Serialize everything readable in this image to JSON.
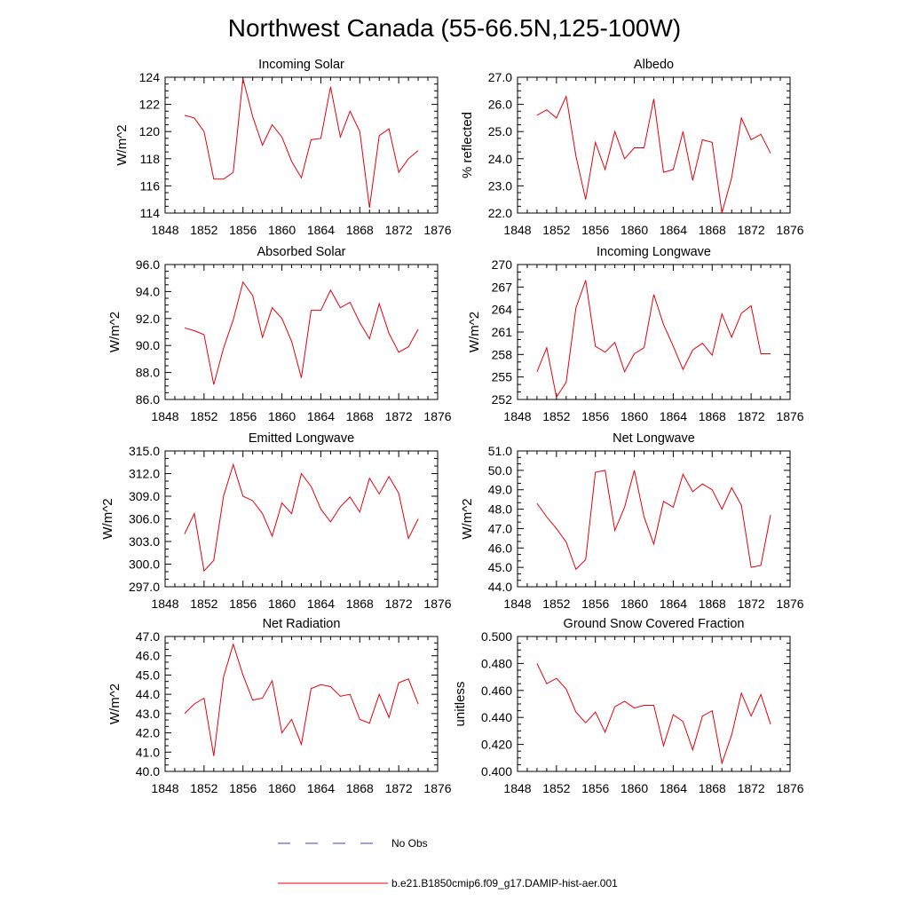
{
  "title": "Northwest Canada (55-66.5N,125-100W)",
  "legend": {
    "entries": [
      {
        "label": "No Obs",
        "color": "#3b3bc4",
        "style": "dashed"
      },
      {
        "label": "b.e21.B1850cmip6.f09_g17.DAMIP-hist-aer.001",
        "color": "#e8000b",
        "style": "solid"
      }
    ]
  },
  "chart_data": [
    {
      "type": "line",
      "title": "Incoming Solar",
      "xlabel": "",
      "ylabel": "W/m^2",
      "xlim": [
        1848,
        1876
      ],
      "ylim": [
        114,
        124
      ],
      "xticks": [
        "1848",
        "1852",
        "1856",
        "1860",
        "1864",
        "1868",
        "1872",
        "1876"
      ],
      "yticks": [
        "114",
        "116",
        "118",
        "120",
        "122",
        "124"
      ],
      "x": [
        1850,
        1851,
        1852,
        1853,
        1854,
        1855,
        1856,
        1857,
        1858,
        1859,
        1860,
        1861,
        1862,
        1863,
        1864,
        1865,
        1866,
        1867,
        1868,
        1869,
        1870,
        1871,
        1872,
        1873,
        1874
      ],
      "series": [
        {
          "name": "b.e21.B1850cmip6.f09_g17.DAMIP-hist-aer.001",
          "color": "#e8000b",
          "values": [
            121.2,
            121.0,
            120.0,
            116.5,
            116.5,
            117.0,
            123.9,
            121.1,
            119.0,
            120.5,
            119.6,
            117.8,
            116.6,
            119.4,
            119.5,
            123.3,
            119.6,
            121.5,
            120.0,
            114.4,
            119.7,
            120.2,
            117.0,
            118.0,
            118.6
          ]
        }
      ]
    },
    {
      "type": "line",
      "title": "Albedo",
      "xlabel": "",
      "ylabel": "% reflected",
      "xlim": [
        1848,
        1876
      ],
      "ylim": [
        22.0,
        27.0
      ],
      "xticks": [
        "1848",
        "1852",
        "1856",
        "1860",
        "1864",
        "1868",
        "1872",
        "1876"
      ],
      "yticks": [
        "22.0",
        "23.0",
        "24.0",
        "25.0",
        "26.0",
        "27.0"
      ],
      "x": [
        1850,
        1851,
        1852,
        1853,
        1854,
        1855,
        1856,
        1857,
        1858,
        1859,
        1860,
        1861,
        1862,
        1863,
        1864,
        1865,
        1866,
        1867,
        1868,
        1869,
        1870,
        1871,
        1872,
        1873,
        1874
      ],
      "series": [
        {
          "name": "b.e21.B1850cmip6.f09_g17.DAMIP-hist-aer.001",
          "color": "#e8000b",
          "values": [
            25.6,
            25.8,
            25.5,
            26.3,
            24.1,
            22.5,
            24.6,
            23.6,
            25.0,
            24.0,
            24.4,
            24.4,
            26.2,
            23.5,
            23.6,
            25.0,
            23.2,
            24.7,
            24.6,
            22.0,
            23.3,
            25.5,
            24.7,
            24.9,
            24.2
          ]
        }
      ]
    },
    {
      "type": "line",
      "title": "Absorbed Solar",
      "xlabel": "",
      "ylabel": "W/m^2",
      "xlim": [
        1848,
        1876
      ],
      "ylim": [
        86.0,
        96.0
      ],
      "xticks": [
        "1848",
        "1852",
        "1856",
        "1860",
        "1864",
        "1868",
        "1872",
        "1876"
      ],
      "yticks": [
        "86.0",
        "88.0",
        "90.0",
        "92.0",
        "94.0",
        "96.0"
      ],
      "x": [
        1850,
        1851,
        1852,
        1853,
        1854,
        1855,
        1856,
        1857,
        1858,
        1859,
        1860,
        1861,
        1862,
        1863,
        1864,
        1865,
        1866,
        1867,
        1868,
        1869,
        1870,
        1871,
        1872,
        1873,
        1874
      ],
      "series": [
        {
          "name": "b.e21.B1850cmip6.f09_g17.DAMIP-hist-aer.001",
          "color": "#e8000b",
          "values": [
            91.3,
            91.1,
            90.8,
            87.1,
            89.8,
            91.9,
            94.7,
            93.7,
            90.6,
            92.8,
            92.0,
            90.3,
            87.6,
            92.6,
            92.6,
            94.1,
            92.8,
            93.2,
            91.7,
            90.5,
            93.1,
            90.9,
            89.5,
            89.9,
            91.2
          ]
        }
      ]
    },
    {
      "type": "line",
      "title": "Incoming Longwave",
      "xlabel": "",
      "ylabel": "W/m^2",
      "xlim": [
        1848,
        1876
      ],
      "ylim": [
        252,
        270
      ],
      "xticks": [
        "1848",
        "1852",
        "1856",
        "1860",
        "1864",
        "1868",
        "1872",
        "1876"
      ],
      "yticks": [
        "252",
        "255",
        "258",
        "261",
        "264",
        "267",
        "270"
      ],
      "x": [
        1850,
        1851,
        1852,
        1853,
        1854,
        1855,
        1856,
        1857,
        1858,
        1859,
        1860,
        1861,
        1862,
        1863,
        1864,
        1865,
        1866,
        1867,
        1868,
        1869,
        1870,
        1871,
        1872,
        1873,
        1874
      ],
      "series": [
        {
          "name": "b.e21.B1850cmip6.f09_g17.DAMIP-hist-aer.001",
          "color": "#e8000b",
          "values": [
            255.7,
            258.9,
            252.3,
            254.3,
            264.2,
            267.9,
            259.1,
            258.3,
            259.6,
            255.7,
            258.1,
            258.9,
            266.0,
            262.0,
            259.1,
            256.0,
            258.6,
            259.5,
            257.9,
            263.4,
            260.3,
            263.5,
            264.5,
            258.1,
            258.1
          ]
        }
      ]
    },
    {
      "type": "line",
      "title": "Emitted Longwave",
      "xlabel": "",
      "ylabel": "W/m^2",
      "xlim": [
        1848,
        1876
      ],
      "ylim": [
        297.0,
        315.0
      ],
      "xticks": [
        "1848",
        "1852",
        "1856",
        "1860",
        "1864",
        "1868",
        "1872",
        "1876"
      ],
      "yticks": [
        "297.0",
        "300.0",
        "303.0",
        "306.0",
        "309.0",
        "312.0",
        "315.0"
      ],
      "x": [
        1850,
        1851,
        1852,
        1853,
        1854,
        1855,
        1856,
        1857,
        1858,
        1859,
        1860,
        1861,
        1862,
        1863,
        1864,
        1865,
        1866,
        1867,
        1868,
        1869,
        1870,
        1871,
        1872,
        1873,
        1874
      ],
      "series": [
        {
          "name": "b.e21.B1850cmip6.f09_g17.DAMIP-hist-aer.001",
          "color": "#e8000b",
          "values": [
            304.0,
            306.7,
            299.1,
            300.5,
            309.0,
            313.2,
            309.0,
            308.4,
            306.7,
            303.7,
            308.1,
            306.7,
            312.0,
            310.3,
            307.3,
            305.6,
            307.6,
            308.9,
            306.9,
            311.4,
            309.3,
            311.6,
            309.4,
            303.4,
            306.0
          ]
        }
      ]
    },
    {
      "type": "line",
      "title": "Net Longwave",
      "xlabel": "",
      "ylabel": "W/m^2",
      "xlim": [
        1848,
        1876
      ],
      "ylim": [
        44.0,
        51.0
      ],
      "xticks": [
        "1848",
        "1852",
        "1856",
        "1860",
        "1864",
        "1868",
        "1872",
        "1876"
      ],
      "yticks": [
        "44.0",
        "45.0",
        "46.0",
        "47.0",
        "48.0",
        "49.0",
        "50.0",
        "51.0"
      ],
      "x": [
        1850,
        1851,
        1852,
        1853,
        1854,
        1855,
        1856,
        1857,
        1858,
        1859,
        1860,
        1861,
        1862,
        1863,
        1864,
        1865,
        1866,
        1867,
        1868,
        1869,
        1870,
        1871,
        1872,
        1873,
        1874
      ],
      "series": [
        {
          "name": "b.e21.B1850cmip6.f09_g17.DAMIP-hist-aer.001",
          "color": "#e8000b",
          "values": [
            48.3,
            47.6,
            47.0,
            46.3,
            44.9,
            45.4,
            49.9,
            50.0,
            46.9,
            48.1,
            50.0,
            47.6,
            46.2,
            48.4,
            48.1,
            49.8,
            48.9,
            49.3,
            49.0,
            48.0,
            49.1,
            48.2,
            45.0,
            45.1,
            47.7
          ]
        }
      ]
    },
    {
      "type": "line",
      "title": "Net Radiation",
      "xlabel": "",
      "ylabel": "W/m^2",
      "xlim": [
        1848,
        1876
      ],
      "ylim": [
        40.0,
        47.0
      ],
      "xticks": [
        "1848",
        "1852",
        "1856",
        "1860",
        "1864",
        "1868",
        "1872",
        "1876"
      ],
      "yticks": [
        "40.0",
        "41.0",
        "42.0",
        "43.0",
        "44.0",
        "45.0",
        "46.0",
        "47.0"
      ],
      "x": [
        1850,
        1851,
        1852,
        1853,
        1854,
        1855,
        1856,
        1857,
        1858,
        1859,
        1860,
        1861,
        1862,
        1863,
        1864,
        1865,
        1866,
        1867,
        1868,
        1869,
        1870,
        1871,
        1872,
        1873,
        1874
      ],
      "series": [
        {
          "name": "b.e21.B1850cmip6.f09_g17.DAMIP-hist-aer.001",
          "color": "#e8000b",
          "values": [
            43.0,
            43.5,
            43.8,
            40.8,
            44.9,
            46.6,
            45.0,
            43.7,
            43.8,
            44.7,
            42.0,
            42.7,
            41.4,
            44.3,
            44.5,
            44.4,
            43.9,
            44.0,
            42.7,
            42.5,
            44.0,
            42.8,
            44.6,
            44.8,
            43.5
          ]
        }
      ]
    },
    {
      "type": "line",
      "title": "Ground Snow Covered Fraction",
      "xlabel": "",
      "ylabel": "unitless",
      "xlim": [
        1848,
        1876
      ],
      "ylim": [
        0.4,
        0.5
      ],
      "xticks": [
        "1848",
        "1852",
        "1856",
        "1860",
        "1864",
        "1868",
        "1872",
        "1876"
      ],
      "yticks": [
        "0.400",
        "0.420",
        "0.440",
        "0.460",
        "0.480",
        "0.500"
      ],
      "x": [
        1850,
        1851,
        1852,
        1853,
        1854,
        1855,
        1856,
        1857,
        1858,
        1859,
        1860,
        1861,
        1862,
        1863,
        1864,
        1865,
        1866,
        1867,
        1868,
        1869,
        1870,
        1871,
        1872,
        1873,
        1874
      ],
      "series": [
        {
          "name": "b.e21.B1850cmip6.f09_g17.DAMIP-hist-aer.001",
          "color": "#e8000b",
          "values": [
            0.48,
            0.465,
            0.469,
            0.461,
            0.444,
            0.436,
            0.444,
            0.429,
            0.448,
            0.452,
            0.447,
            0.449,
            0.449,
            0.419,
            0.442,
            0.437,
            0.416,
            0.441,
            0.445,
            0.406,
            0.427,
            0.458,
            0.441,
            0.457,
            0.435
          ]
        }
      ]
    }
  ]
}
